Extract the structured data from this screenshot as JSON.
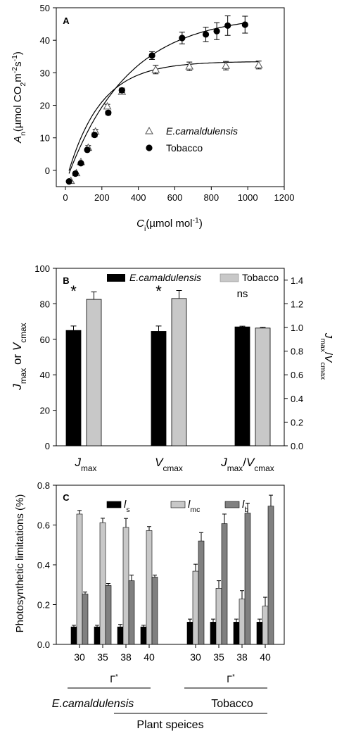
{
  "chart_data": [
    {
      "panel": "A",
      "type": "scatter",
      "panel_label": "A",
      "xlabel_main": "C",
      "xlabel_sub": "i",
      "xlabel_unit": "(µmol mol",
      "xlabel_exp": "-1",
      "xlabel_close": ")",
      "ylabel_main": "A",
      "ylabel_sub": "n",
      "ylabel_unit1": "(µmol CO",
      "ylabel_sub2": "2",
      "ylabel_unit2": "m",
      "ylabel_exp1": "-2",
      "ylabel_unit3": "s",
      "ylabel_exp2": "-1",
      "ylabel_close": ")",
      "xlim": [
        -50,
        1200
      ],
      "ylim": [
        -5,
        50
      ],
      "xticks": [
        "0",
        "200",
        "400",
        "600",
        "800",
        "1000",
        "1200"
      ],
      "yticks": [
        "0",
        "10",
        "20",
        "30",
        "40",
        "50"
      ],
      "legend_position": "center-right",
      "series": [
        {
          "name": "E.camaldulensis",
          "marker": "open-triangle",
          "x": [
            30,
            60,
            85,
            125,
            165,
            230,
            310,
            495,
            680,
            880,
            1060
          ],
          "y": [
            -3.2,
            -0.8,
            2.6,
            7.0,
            12.0,
            19.7,
            24.2,
            31.0,
            32.0,
            32.2,
            32.4
          ],
          "err": [
            0.3,
            0.4,
            0.5,
            0.6,
            0.6,
            0.6,
            0.7,
            1.3,
            1.3,
            1.3,
            1.2
          ],
          "fit_curve": {
            "a_max": 33.5,
            "y0": -4.0,
            "k": 0.0055
          }
        },
        {
          "name": "Tobacco",
          "marker": "filled-circle",
          "x": [
            20,
            55,
            85,
            120,
            160,
            235,
            310,
            475,
            640,
            770,
            830,
            890,
            985
          ],
          "y": [
            -3.4,
            -1.0,
            2.2,
            6.3,
            10.9,
            17.7,
            24.6,
            35.3,
            40.7,
            41.8,
            42.8,
            44.5,
            44.8
          ],
          "err": [
            0.2,
            0.3,
            0.4,
            0.5,
            0.6,
            0.6,
            0.7,
            1.2,
            1.8,
            2.2,
            2.6,
            3.0,
            2.6
          ],
          "fit_curve": {
            "a_max": 48.0,
            "y0": -4.0,
            "k": 0.003
          }
        }
      ]
    },
    {
      "panel": "B",
      "type": "bar",
      "panel_label": "B",
      "categories": [
        {
          "main": "J",
          "sub": "max"
        },
        {
          "main": "V",
          "sub": "cmax"
        },
        {
          "main": "J",
          "sub": "max",
          "slash": "/",
          "main2": "V",
          "sub2": "cmax"
        }
      ],
      "ylabel_left": {
        "main": "J",
        "sub": "max",
        "mid": " or ",
        "main2": "V",
        "sub2": "cmax"
      },
      "ylabel_right": {
        "main": "J",
        "sub": "max",
        "slash": "/",
        "main2": "V",
        "sub2": "cmax"
      },
      "ylim_left": [
        0,
        100
      ],
      "ylim_right": [
        0,
        1.5
      ],
      "yticks_left": [
        "0",
        "20",
        "40",
        "60",
        "80",
        "100"
      ],
      "yticks_right": [
        "0.0",
        "0.2",
        "0.4",
        "0.6",
        "0.8",
        "1.0",
        "1.2",
        "1.4"
      ],
      "legend_position": "top",
      "series": [
        {
          "name": "E.camaldulensis",
          "color": "#000000",
          "values": [
            65.0,
            64.5,
            1.005
          ],
          "err": [
            2.5,
            3.0,
            0.006
          ],
          "axis": [
            "left",
            "left",
            "right"
          ]
        },
        {
          "name": "Tobacco",
          "color": "#c8c8c8",
          "values": [
            82.5,
            83.0,
            0.995
          ],
          "err": [
            4.2,
            4.5,
            0.006
          ],
          "axis": [
            "left",
            "left",
            "right"
          ]
        }
      ],
      "annotations": [
        "*",
        "*",
        "ns"
      ]
    },
    {
      "panel": "C",
      "type": "bar",
      "panel_label": "C",
      "ylabel": "Photosynthetic limitations (%)",
      "ylim": [
        0,
        0.8
      ],
      "yticks": [
        "0.0",
        "0.2",
        "0.4",
        "0.6",
        "0.8"
      ],
      "categories": [
        "30",
        "35",
        "38",
        "40",
        "30",
        "35",
        "38",
        "40"
      ],
      "group_symbol": "Γ",
      "group_symbol_sup": "*",
      "groups": [
        "E.camaldulensis",
        "Tobacco"
      ],
      "xlabel": "Plant speices",
      "legend_position": "top",
      "series": [
        {
          "name_main": "l",
          "name_sub": "s",
          "color": "#000000",
          "values": [
            0.088,
            0.088,
            0.088,
            0.088,
            0.112,
            0.112,
            0.112,
            0.112
          ],
          "err": [
            0.008,
            0.008,
            0.012,
            0.008,
            0.015,
            0.015,
            0.015,
            0.015
          ]
        },
        {
          "name_main": "l",
          "name_sub": "mc",
          "color": "#c8c8c8",
          "values": [
            0.655,
            0.612,
            0.588,
            0.572,
            0.368,
            0.282,
            0.228,
            0.192
          ],
          "err": [
            0.018,
            0.022,
            0.045,
            0.02,
            0.035,
            0.038,
            0.042,
            0.045
          ]
        },
        {
          "name_main": "l",
          "name_sub": "b",
          "color": "#808080",
          "values": [
            0.253,
            0.296,
            0.32,
            0.338,
            0.52,
            0.607,
            0.66,
            0.695
          ],
          "err": [
            0.01,
            0.01,
            0.028,
            0.01,
            0.042,
            0.048,
            0.05,
            0.055
          ]
        }
      ]
    }
  ]
}
